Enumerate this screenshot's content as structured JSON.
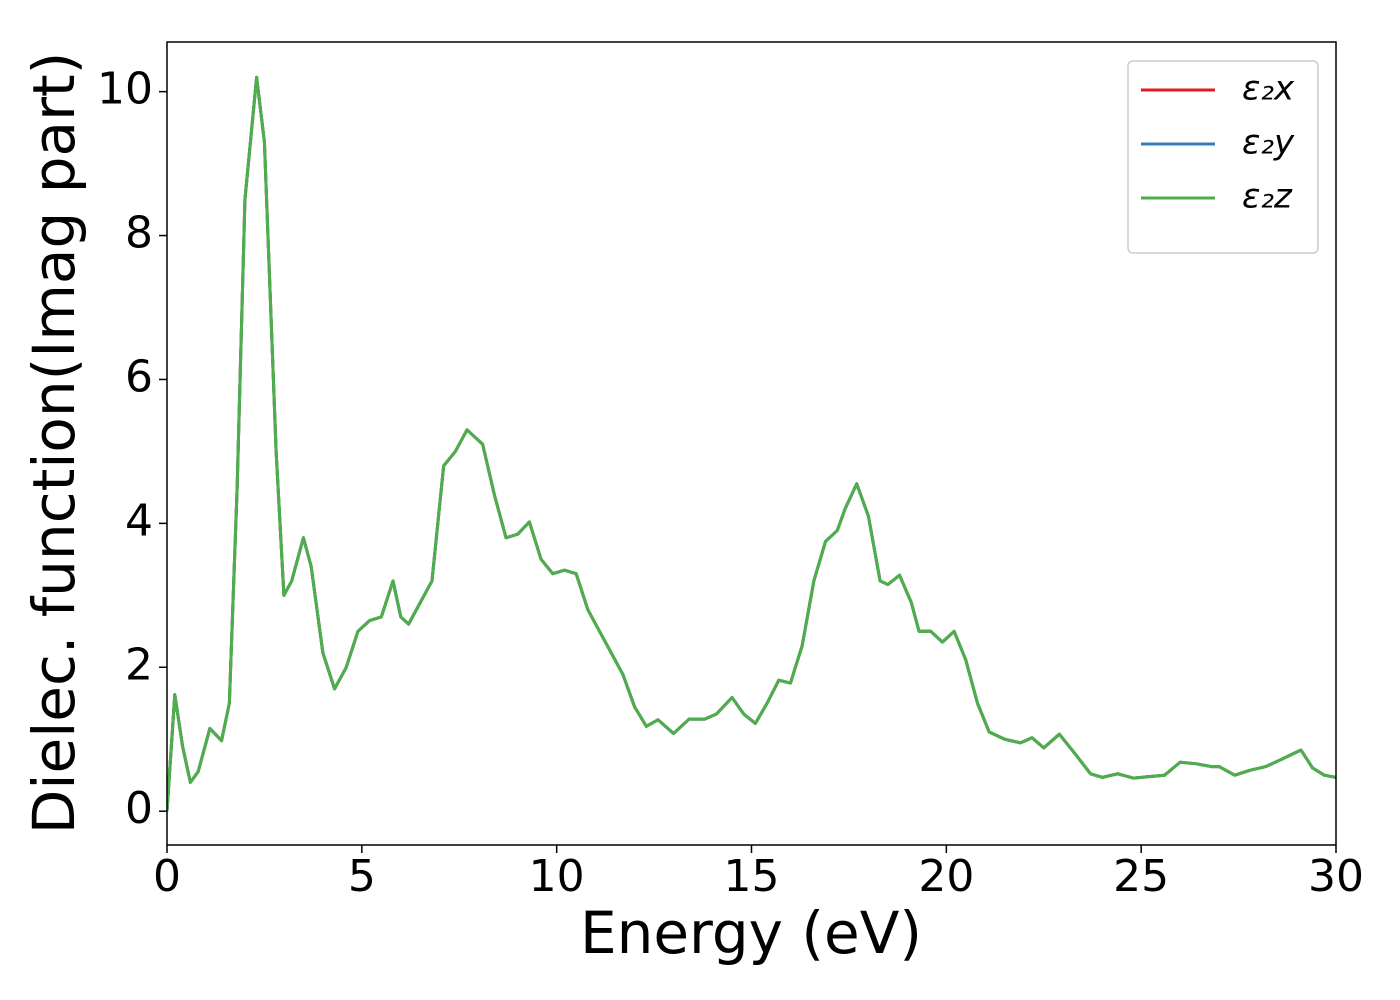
{
  "chart_data": {
    "type": "line",
    "xlabel": "Energy (eV)",
    "ylabel": "Dielec. function(Imag part)",
    "x": [
      0,
      0.2,
      0.4,
      0.6,
      0.8,
      1.1,
      1.4,
      1.6,
      1.8,
      2.0,
      2.3,
      2.5,
      2.8,
      3.0,
      3.2,
      3.5,
      3.7,
      4.0,
      4.3,
      4.6,
      4.9,
      5.2,
      5.5,
      5.8,
      6.0,
      6.2,
      6.5,
      6.8,
      7.1,
      7.4,
      7.7,
      8.1,
      8.4,
      8.7,
      9.0,
      9.3,
      9.6,
      9.9,
      10.2,
      10.5,
      10.8,
      11.1,
      11.4,
      11.7,
      12.0,
      12.3,
      12.6,
      13.0,
      13.4,
      13.8,
      14.1,
      14.5,
      14.8,
      15.1,
      15.4,
      15.7,
      16.0,
      16.3,
      16.6,
      16.9,
      17.2,
      17.4,
      17.7,
      18.0,
      18.3,
      18.5,
      18.8,
      19.1,
      19.3,
      19.6,
      19.9,
      20.2,
      20.5,
      20.8,
      21.1,
      21.5,
      21.9,
      22.2,
      22.5,
      22.9,
      23.3,
      23.7,
      24.0,
      24.4,
      24.8,
      25.2,
      25.6,
      26.0,
      26.4,
      26.8,
      27.0,
      27.4,
      27.8,
      28.2,
      28.6,
      29.1,
      29.4,
      29.7,
      30
    ],
    "series": [
      {
        "name": "ε₂x",
        "color": "#e41a1c",
        "values": [
          0,
          1.62,
          0.9,
          0.4,
          0.55,
          1.15,
          0.98,
          1.5,
          4.5,
          8.5,
          10.2,
          9.3,
          5.0,
          3.0,
          3.2,
          3.8,
          3.4,
          2.2,
          1.7,
          2.0,
          2.5,
          2.65,
          2.7,
          3.2,
          2.7,
          2.6,
          2.9,
          3.2,
          4.8,
          5.0,
          5.3,
          5.1,
          4.4,
          3.8,
          3.85,
          4.02,
          3.5,
          3.3,
          3.35,
          3.3,
          2.8,
          2.5,
          2.2,
          1.9,
          1.45,
          1.18,
          1.27,
          1.08,
          1.28,
          1.28,
          1.35,
          1.58,
          1.35,
          1.22,
          1.5,
          1.82,
          1.78,
          2.3,
          3.2,
          3.75,
          3.9,
          4.2,
          4.55,
          4.1,
          3.2,
          3.15,
          3.28,
          2.9,
          2.5,
          2.5,
          2.35,
          2.5,
          2.1,
          1.5,
          1.1,
          1.0,
          0.95,
          1.02,
          0.88,
          1.07,
          0.8,
          0.52,
          0.47,
          0.52,
          0.46,
          0.48,
          0.5,
          0.68,
          0.66,
          0.62,
          0.62,
          0.5,
          0.57,
          0.62,
          0.72,
          0.85,
          0.6,
          0.5,
          0.47
        ]
      },
      {
        "name": "ε₂y",
        "color": "#377eb8",
        "values": [
          0,
          1.62,
          0.9,
          0.4,
          0.55,
          1.15,
          0.98,
          1.5,
          4.5,
          8.5,
          10.2,
          9.3,
          5.0,
          3.0,
          3.2,
          3.8,
          3.4,
          2.2,
          1.7,
          2.0,
          2.5,
          2.65,
          2.7,
          3.2,
          2.7,
          2.6,
          2.9,
          3.2,
          4.8,
          5.0,
          5.3,
          5.1,
          4.4,
          3.8,
          3.85,
          4.02,
          3.5,
          3.3,
          3.35,
          3.3,
          2.8,
          2.5,
          2.2,
          1.9,
          1.45,
          1.18,
          1.27,
          1.08,
          1.28,
          1.28,
          1.35,
          1.58,
          1.35,
          1.22,
          1.5,
          1.82,
          1.78,
          2.3,
          3.2,
          3.75,
          3.9,
          4.2,
          4.55,
          4.1,
          3.2,
          3.15,
          3.28,
          2.9,
          2.5,
          2.5,
          2.35,
          2.5,
          2.1,
          1.5,
          1.1,
          1.0,
          0.95,
          1.02,
          0.88,
          1.07,
          0.8,
          0.52,
          0.47,
          0.52,
          0.46,
          0.48,
          0.5,
          0.68,
          0.66,
          0.62,
          0.62,
          0.5,
          0.57,
          0.62,
          0.72,
          0.85,
          0.6,
          0.5,
          0.47
        ]
      },
      {
        "name": "ε₂z",
        "color": "#4daf4a",
        "values": [
          0,
          1.62,
          0.9,
          0.4,
          0.55,
          1.15,
          0.98,
          1.5,
          4.5,
          8.5,
          10.2,
          9.3,
          5.0,
          3.0,
          3.2,
          3.8,
          3.4,
          2.2,
          1.7,
          2.0,
          2.5,
          2.65,
          2.7,
          3.2,
          2.7,
          2.6,
          2.9,
          3.2,
          4.8,
          5.0,
          5.3,
          5.1,
          4.4,
          3.8,
          3.85,
          4.02,
          3.5,
          3.3,
          3.35,
          3.3,
          2.8,
          2.5,
          2.2,
          1.9,
          1.45,
          1.18,
          1.27,
          1.08,
          1.28,
          1.28,
          1.35,
          1.58,
          1.35,
          1.22,
          1.5,
          1.82,
          1.78,
          2.3,
          3.2,
          3.75,
          3.9,
          4.2,
          4.55,
          4.1,
          3.2,
          3.15,
          3.28,
          2.9,
          2.5,
          2.5,
          2.35,
          2.5,
          2.1,
          1.5,
          1.1,
          1.0,
          0.95,
          1.02,
          0.88,
          1.07,
          0.8,
          0.52,
          0.47,
          0.52,
          0.46,
          0.48,
          0.5,
          0.68,
          0.66,
          0.62,
          0.62,
          0.5,
          0.57,
          0.62,
          0.72,
          0.85,
          0.6,
          0.5,
          0.47
        ]
      }
    ],
    "xlim": [
      0,
      30
    ],
    "xticks": [
      0,
      5,
      10,
      15,
      20,
      25,
      30
    ],
    "ylim": [
      -0.47,
      10.69
    ],
    "yticks": [
      0,
      2,
      4,
      6,
      8,
      10
    ],
    "grid": false,
    "legend": "upper right"
  }
}
